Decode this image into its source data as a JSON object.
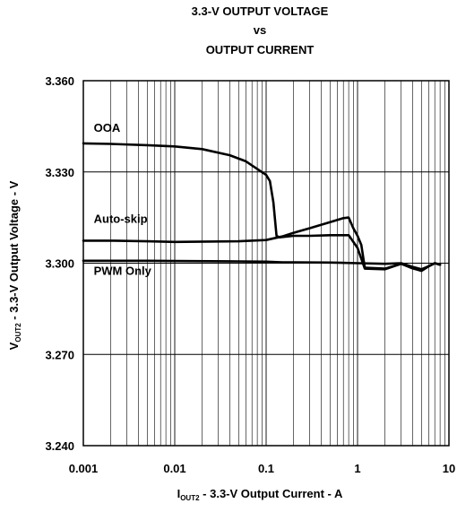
{
  "chart_data": {
    "type": "line",
    "title": [
      "3.3-V OUTPUT VOLTAGE",
      "vs",
      "OUTPUT CURRENT"
    ],
    "xlabel": {
      "main": "I",
      "sub": "OUT2",
      "rest": " - 3.3-V Output Current - A"
    },
    "ylabel": {
      "main": "V",
      "sub": "OUT2",
      "rest": " - 3.3-V Output Voltage - V"
    },
    "x_scale": "log",
    "xlim": [
      0.001,
      10
    ],
    "ylim": [
      3.24,
      3.36
    ],
    "x_ticks": [
      0.001,
      0.01,
      0.1,
      1,
      10
    ],
    "x_tick_labels": [
      "0.001",
      "0.01",
      "0.1",
      "1",
      "10"
    ],
    "y_ticks": [
      3.24,
      3.27,
      3.3,
      3.33,
      3.36
    ],
    "y_tick_labels": [
      "3.240",
      "3.270",
      "3.300",
      "3.330",
      "3.360"
    ],
    "grid": true,
    "annotations": [
      {
        "text": "OOA",
        "x": 0.0013,
        "y": 3.3432
      },
      {
        "text": "Auto-skip",
        "x": 0.0013,
        "y": 3.3132
      },
      {
        "text": "PWM Only",
        "x": 0.0013,
        "y": 3.2962
      }
    ],
    "series": [
      {
        "name": "OOA",
        "x": [
          0.001,
          0.002,
          0.005,
          0.01,
          0.02,
          0.04,
          0.06,
          0.08,
          0.1,
          0.11,
          0.12,
          0.13,
          0.14,
          0.2,
          0.3,
          0.5,
          0.8,
          1.0,
          1.2,
          2,
          3,
          4,
          5,
          6,
          7,
          8
        ],
        "y": [
          3.3394,
          3.3392,
          3.3388,
          3.3384,
          3.3375,
          3.3355,
          3.3335,
          3.331,
          3.329,
          3.327,
          3.32,
          3.309,
          3.3085,
          3.309,
          3.309,
          3.3092,
          3.3092,
          3.305,
          3.2982,
          3.298,
          3.2998,
          3.2985,
          3.2975,
          3.299,
          3.3,
          3.2995
        ]
      },
      {
        "name": "Auto-skip",
        "x": [
          0.001,
          0.002,
          0.005,
          0.01,
          0.05,
          0.1,
          0.15,
          0.2,
          0.3,
          0.5,
          0.7,
          0.8,
          0.9,
          1.0,
          1.1,
          1.2,
          2,
          3,
          4,
          5,
          6,
          7,
          8
        ],
        "y": [
          3.3074,
          3.3074,
          3.3072,
          3.307,
          3.3072,
          3.3076,
          3.3088,
          3.31,
          3.3115,
          3.3135,
          3.3148,
          3.315,
          3.3115,
          3.309,
          3.306,
          3.2985,
          3.2982,
          3.2998,
          3.2983,
          3.2975,
          3.299,
          3.3,
          3.2995
        ]
      },
      {
        "name": "PWM Only",
        "x": [
          0.001,
          0.002,
          0.005,
          0.01,
          0.05,
          0.1,
          0.15,
          0.2,
          0.5,
          1.0,
          2,
          3,
          4,
          5,
          6,
          7,
          8
        ],
        "y": [
          3.3008,
          3.3008,
          3.3008,
          3.3007,
          3.3006,
          3.3005,
          3.3003,
          3.3003,
          3.3002,
          3.3,
          3.2998,
          3.3,
          3.2988,
          3.298,
          3.299,
          3.3,
          3.2995
        ]
      }
    ]
  }
}
